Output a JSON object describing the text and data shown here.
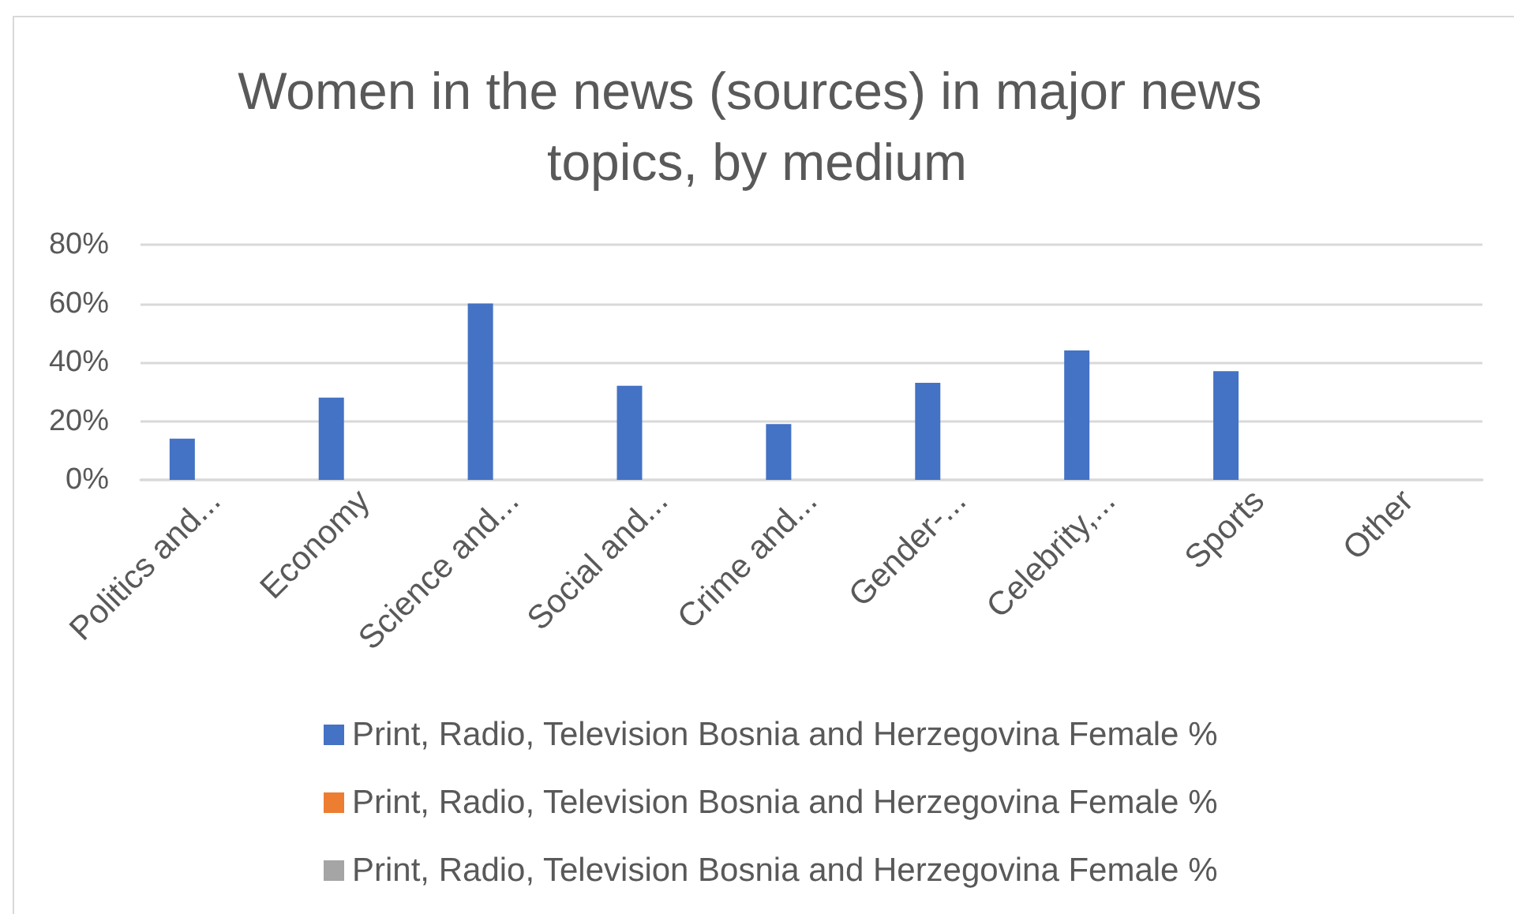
{
  "chart_data": {
    "type": "bar",
    "title": "Women in the news (sources) in major news topics, by medium",
    "categories": [
      "Politics and...",
      "Economy",
      "Science and...",
      "Social and...",
      "Crime and...",
      "Gender-...",
      "Celebrity,...",
      "Sports",
      "Other"
    ],
    "series": [
      {
        "name": "Print, Radio, Television Bosnia and Herzegovina Female %",
        "color": "#4472c4",
        "values": [
          14,
          28,
          60,
          32,
          19,
          33,
          44,
          37,
          null
        ]
      },
      {
        "name": "Print, Radio, Television Bosnia and Herzegovina Female %",
        "color": "#ed7d31",
        "values": [
          null,
          null,
          null,
          null,
          null,
          null,
          null,
          null,
          null
        ]
      },
      {
        "name": "Print, Radio, Television Bosnia and Herzegovina Female %",
        "color": "#a5a5a5",
        "values": [
          null,
          null,
          null,
          null,
          null,
          null,
          null,
          null,
          null
        ]
      }
    ],
    "ylim": [
      0,
      80
    ],
    "yticks": [
      {
        "value": 0,
        "label": "0%"
      },
      {
        "value": 20,
        "label": "20%"
      },
      {
        "value": 40,
        "label": "40%"
      },
      {
        "value": 60,
        "label": "60%"
      },
      {
        "value": 80,
        "label": "80%"
      }
    ],
    "grid": "y",
    "legend": "bottom"
  }
}
